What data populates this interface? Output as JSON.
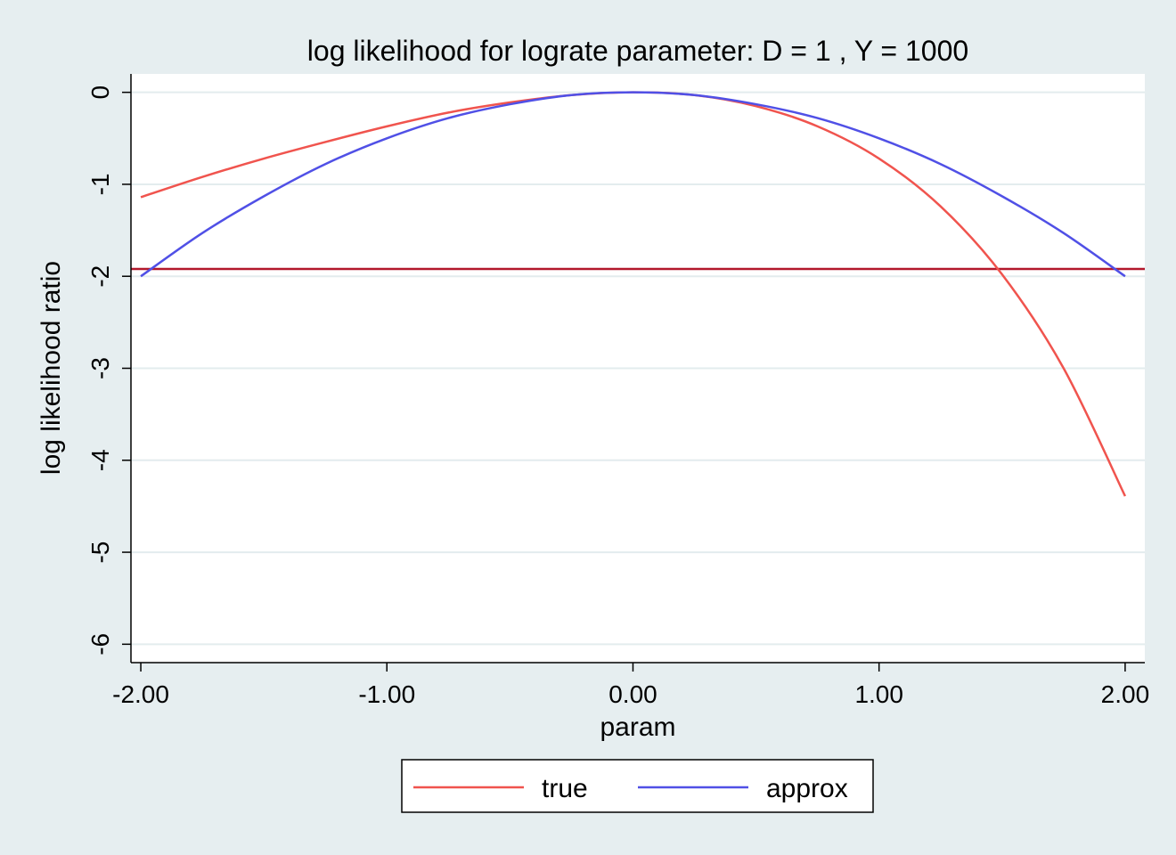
{
  "chart_data": {
    "type": "line",
    "title": "log likelihood for lograte parameter: D = 1 , Y = 1000",
    "xlabel": "param",
    "ylabel": "log likelihood ratio",
    "xlim": [
      -2.04,
      2.08
    ],
    "ylim": [
      -6.2,
      0.2
    ],
    "x_ticks": [
      -2,
      -1,
      0,
      1,
      2
    ],
    "x_tick_labels": [
      "-2.00",
      "-1.00",
      "0.00",
      "1.00",
      "2.00"
    ],
    "y_ticks": [
      0,
      -1,
      -2,
      -3,
      -4,
      -5,
      -6
    ],
    "y_tick_labels": [
      "0",
      "-1",
      "-2",
      "-3",
      "-4",
      "-5",
      "-6"
    ],
    "grid": true,
    "legend_position": "bottom",
    "reference_line": {
      "y": -1.92,
      "color": "#b2182b"
    },
    "x": [
      -2.0,
      -1.75,
      -1.5,
      -1.25,
      -1.0,
      -0.75,
      -0.5,
      -0.25,
      0.0,
      0.25,
      0.5,
      0.75,
      1.0,
      1.25,
      1.5,
      1.75,
      2.0
    ],
    "series": [
      {
        "name": "true",
        "color": "#f0544e",
        "values": [
          -1.14,
          -0.92,
          -0.72,
          -0.54,
          -0.37,
          -0.22,
          -0.11,
          -0.03,
          0.0,
          -0.03,
          -0.15,
          -0.37,
          -0.72,
          -1.24,
          -1.98,
          -3.0,
          -4.39
        ]
      },
      {
        "name": "approx",
        "color": "#5050e6",
        "values": [
          -2.0,
          -1.53,
          -1.13,
          -0.78,
          -0.5,
          -0.28,
          -0.13,
          -0.03,
          0.0,
          -0.03,
          -0.13,
          -0.28,
          -0.5,
          -0.78,
          -1.13,
          -1.53,
          -2.0
        ]
      }
    ]
  }
}
